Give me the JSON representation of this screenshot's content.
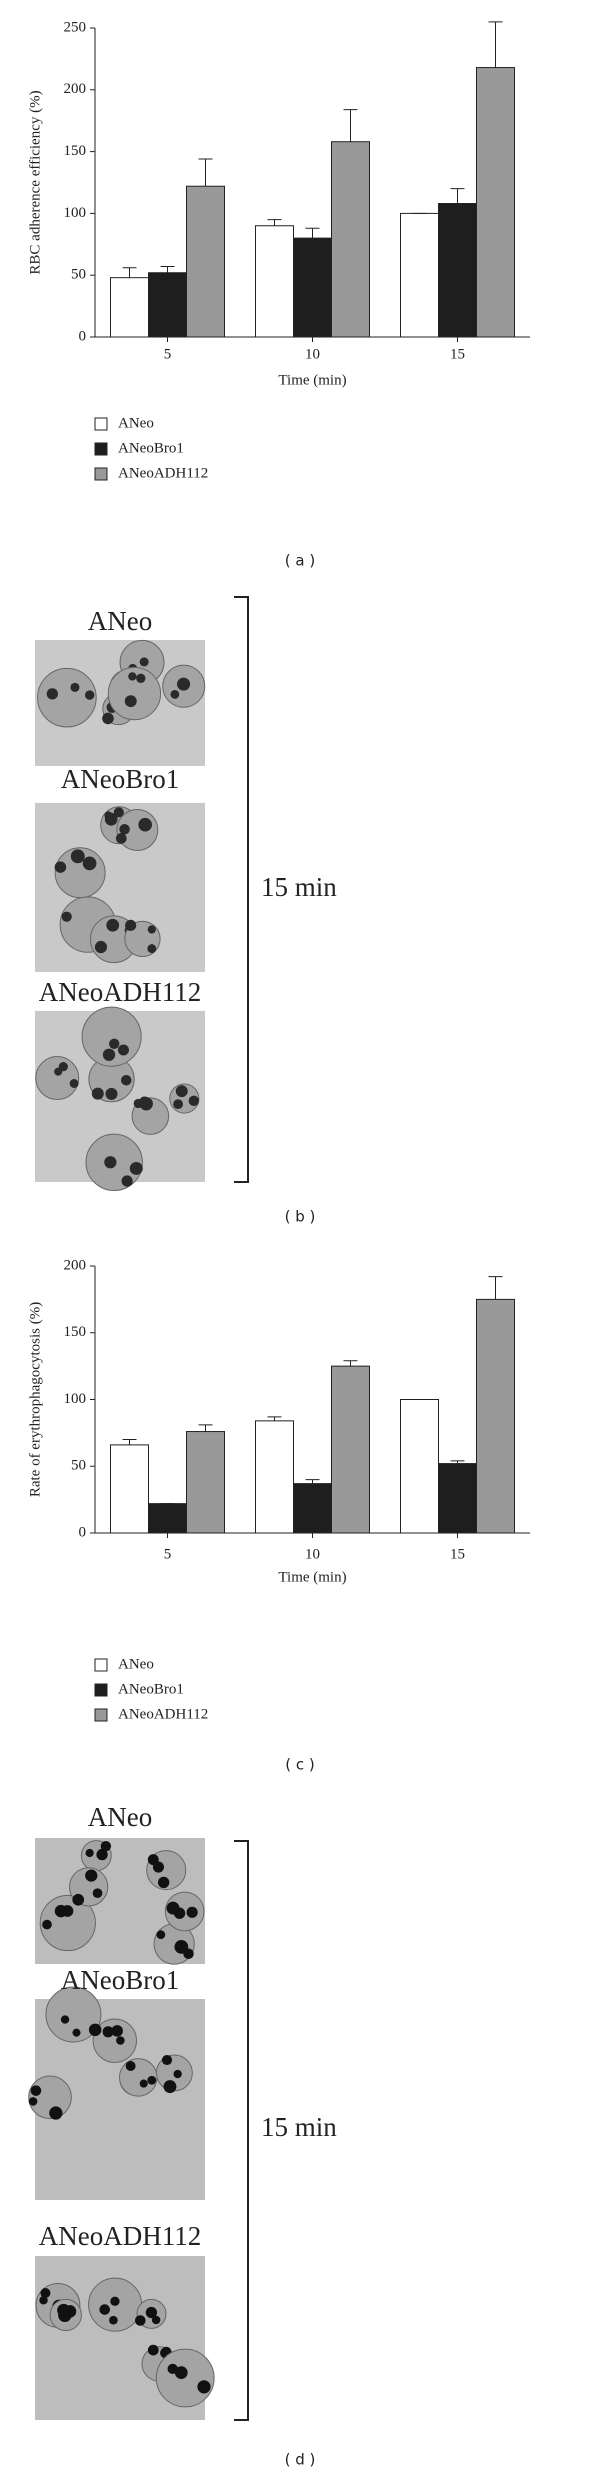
{
  "chart_data": [
    {
      "type": "bar",
      "ylabel": "RBC adherence efficiency (%)",
      "xlabel": "Time (min)",
      "categories": [
        "5",
        "10",
        "15"
      ],
      "ylim": [
        0,
        250
      ],
      "yticks": [
        0,
        50,
        100,
        150,
        200,
        250
      ],
      "series": [
        {
          "name": "ANeo",
          "color": "#ffffff",
          "values": [
            48,
            90,
            100
          ],
          "errors": [
            8,
            5,
            0
          ]
        },
        {
          "name": "ANeoBro1",
          "color": "#1e1e1e",
          "values": [
            52,
            80,
            108
          ],
          "errors": [
            5,
            8,
            12
          ]
        },
        {
          "name": "ANeoADH112",
          "color": "#999999",
          "values": [
            122,
            158,
            218
          ],
          "errors": [
            22,
            26,
            37
          ]
        }
      ],
      "caption": "( a )"
    },
    {
      "type": "bar",
      "ylabel": "Rate of erythrophagocytosis (%)",
      "xlabel": "Time (min)",
      "categories": [
        "5",
        "10",
        "15"
      ],
      "ylim": [
        0,
        200
      ],
      "yticks": [
        0,
        50,
        100,
        150,
        200
      ],
      "series": [
        {
          "name": "ANeo",
          "color": "#ffffff",
          "values": [
            66,
            84,
            100
          ],
          "errors": [
            4,
            3,
            0
          ]
        },
        {
          "name": "ANeoBro1",
          "color": "#1e1e1e",
          "values": [
            22,
            37,
            52
          ],
          "errors": [
            0,
            3,
            2
          ]
        },
        {
          "name": "ANeoADH112",
          "color": "#999999",
          "values": [
            76,
            125,
            175
          ],
          "errors": [
            5,
            4,
            17
          ]
        }
      ],
      "caption": "( c )"
    }
  ],
  "panels": [
    {
      "labels": [
        "ANeo",
        "ANeoBro1",
        "ANeoADH112"
      ],
      "bracket": "15 min",
      "caption": "( b )"
    },
    {
      "labels": [
        "ANeo",
        "ANeoBro1",
        "ANeoADH112"
      ],
      "bracket": "15 min",
      "caption": "( d )"
    }
  ]
}
